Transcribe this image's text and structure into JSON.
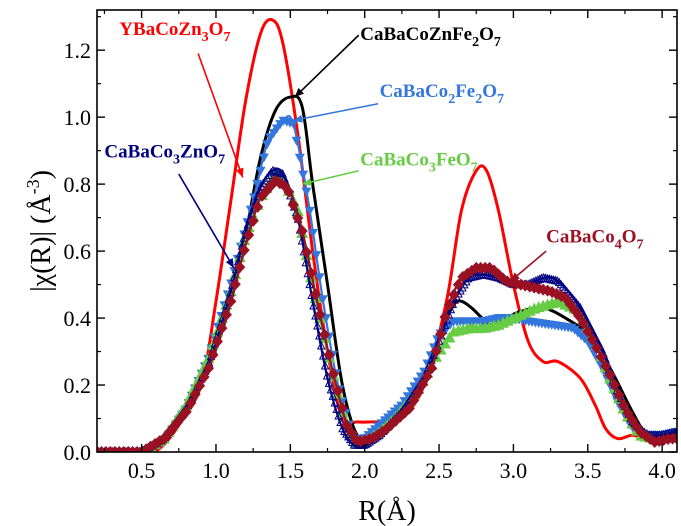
{
  "chart_data": {
    "type": "line",
    "xlabel": "R(Å)",
    "ylabel_parts": {
      "pre": "|χ(R)| (Å",
      "sup": "-3",
      "post": ")"
    },
    "xlim": [
      0.2,
      4.1
    ],
    "ylim": [
      0.0,
      1.32
    ],
    "xticks": [
      0.5,
      1.0,
      1.5,
      2.0,
      2.5,
      3.0,
      3.5,
      4.0
    ],
    "yticks": [
      0.0,
      0.2,
      0.4,
      0.6,
      0.8,
      1.0,
      1.2
    ],
    "xtick_labels": [
      "0.5",
      "1.0",
      "1.5",
      "2.0",
      "2.5",
      "3.0",
      "3.5",
      "4.0"
    ],
    "ytick_labels": [
      "0.0",
      "0.2",
      "0.4",
      "0.6",
      "0.8",
      "1.0",
      "1.2"
    ],
    "grid": false,
    "series": [
      {
        "key": "YBaCoZn3O7",
        "label": {
          "base": "YBaCoZn",
          "sub1": "3",
          "mid": "O",
          "sub2": "7"
        },
        "color": "#ff0000",
        "marker": "none",
        "label_at": [
          0.35,
          1.245
        ],
        "arrow_to": [
          1.18,
          0.82
        ],
        "points": [
          [
            0.2,
            0.0
          ],
          [
            0.5,
            0.0
          ],
          [
            0.62,
            0.01
          ],
          [
            0.75,
            0.08
          ],
          [
            0.9,
            0.2
          ],
          [
            1.0,
            0.45
          ],
          [
            1.1,
            0.75
          ],
          [
            1.2,
            1.05
          ],
          [
            1.3,
            1.25
          ],
          [
            1.38,
            1.29
          ],
          [
            1.45,
            1.22
          ],
          [
            1.55,
            0.95
          ],
          [
            1.65,
            0.6
          ],
          [
            1.75,
            0.3
          ],
          [
            1.85,
            0.1
          ],
          [
            1.95,
            0.09
          ],
          [
            2.05,
            0.09
          ],
          [
            2.15,
            0.09
          ],
          [
            2.25,
            0.1
          ],
          [
            2.4,
            0.2
          ],
          [
            2.55,
            0.45
          ],
          [
            2.65,
            0.72
          ],
          [
            2.75,
            0.84
          ],
          [
            2.82,
            0.84
          ],
          [
            2.9,
            0.72
          ],
          [
            3.0,
            0.5
          ],
          [
            3.1,
            0.33
          ],
          [
            3.2,
            0.27
          ],
          [
            3.3,
            0.27
          ],
          [
            3.45,
            0.22
          ],
          [
            3.55,
            0.14
          ],
          [
            3.62,
            0.07
          ],
          [
            3.7,
            0.04
          ],
          [
            3.8,
            0.05
          ],
          [
            3.9,
            0.04
          ],
          [
            4.0,
            0.05
          ],
          [
            4.1,
            0.06
          ]
        ]
      },
      {
        "key": "CaBaCoZnFe2O7",
        "label": {
          "base": "CaBaCoZnFe",
          "sub1": "2",
          "mid": "O",
          "sub2": "7"
        },
        "color": "#000000",
        "marker": "none",
        "label_at": [
          1.97,
          1.23
        ],
        "arrow_to": [
          1.53,
          1.06
        ],
        "points": [
          [
            0.2,
            0.0
          ],
          [
            0.5,
            0.0
          ],
          [
            0.65,
            0.03
          ],
          [
            0.8,
            0.12
          ],
          [
            0.95,
            0.25
          ],
          [
            1.1,
            0.45
          ],
          [
            1.2,
            0.65
          ],
          [
            1.3,
            0.88
          ],
          [
            1.4,
            1.02
          ],
          [
            1.5,
            1.06
          ],
          [
            1.58,
            1.03
          ],
          [
            1.65,
            0.8
          ],
          [
            1.75,
            0.5
          ],
          [
            1.85,
            0.2
          ],
          [
            1.95,
            0.05
          ],
          [
            2.05,
            0.05
          ],
          [
            2.2,
            0.1
          ],
          [
            2.35,
            0.18
          ],
          [
            2.5,
            0.35
          ],
          [
            2.6,
            0.44
          ],
          [
            2.65,
            0.45
          ],
          [
            2.72,
            0.43
          ],
          [
            2.85,
            0.38
          ],
          [
            2.95,
            0.4
          ],
          [
            3.05,
            0.42
          ],
          [
            3.2,
            0.43
          ],
          [
            3.35,
            0.4
          ],
          [
            3.5,
            0.35
          ],
          [
            3.65,
            0.25
          ],
          [
            3.8,
            0.12
          ],
          [
            3.9,
            0.05
          ],
          [
            4.0,
            0.05
          ],
          [
            4.1,
            0.06
          ]
        ]
      },
      {
        "key": "CaBaCo2Fe2O7",
        "label": {
          "base": "CaBaCo",
          "sub1": "2",
          "mid": "Fe",
          "sub2": "2",
          "end": "O",
          "sub3": "7"
        },
        "color": "#3377dd",
        "marker": "triangle-down",
        "label_at": [
          2.1,
          1.06
        ],
        "arrow_to": [
          1.52,
          0.99
        ],
        "points": [
          [
            0.2,
            0.0
          ],
          [
            0.5,
            0.0
          ],
          [
            0.65,
            0.03
          ],
          [
            0.8,
            0.13
          ],
          [
            0.95,
            0.28
          ],
          [
            1.1,
            0.5
          ],
          [
            1.25,
            0.75
          ],
          [
            1.35,
            0.93
          ],
          [
            1.45,
            0.99
          ],
          [
            1.52,
            0.98
          ],
          [
            1.62,
            0.75
          ],
          [
            1.72,
            0.45
          ],
          [
            1.82,
            0.2
          ],
          [
            1.92,
            0.04
          ],
          [
            2.0,
            0.04
          ],
          [
            2.1,
            0.08
          ],
          [
            2.25,
            0.14
          ],
          [
            2.4,
            0.24
          ],
          [
            2.5,
            0.35
          ],
          [
            2.6,
            0.39
          ],
          [
            2.7,
            0.39
          ],
          [
            2.8,
            0.39
          ],
          [
            2.9,
            0.4
          ],
          [
            3.0,
            0.4
          ],
          [
            3.1,
            0.39
          ],
          [
            3.25,
            0.38
          ],
          [
            3.4,
            0.37
          ],
          [
            3.5,
            0.33
          ],
          [
            3.6,
            0.25
          ],
          [
            3.7,
            0.15
          ],
          [
            3.8,
            0.07
          ],
          [
            3.9,
            0.05
          ],
          [
            4.0,
            0.05
          ],
          [
            4.1,
            0.06
          ]
        ]
      },
      {
        "key": "CaBaCo3FeO7",
        "label": {
          "base": "CaBaCo",
          "sub1": "3",
          "mid": "FeO",
          "sub2": "7"
        },
        "color": "#66cc44",
        "marker": "triangle-up",
        "label_at": [
          1.97,
          0.855
        ],
        "arrow_to": [
          1.58,
          0.8
        ],
        "points": [
          [
            0.2,
            0.0
          ],
          [
            0.5,
            0.0
          ],
          [
            0.65,
            0.04
          ],
          [
            0.8,
            0.14
          ],
          [
            0.95,
            0.28
          ],
          [
            1.1,
            0.48
          ],
          [
            1.2,
            0.65
          ],
          [
            1.3,
            0.76
          ],
          [
            1.4,
            0.83
          ],
          [
            1.45,
            0.82
          ],
          [
            1.55,
            0.72
          ],
          [
            1.65,
            0.5
          ],
          [
            1.75,
            0.3
          ],
          [
            1.85,
            0.12
          ],
          [
            1.93,
            0.03
          ],
          [
            2.0,
            0.03
          ],
          [
            2.1,
            0.06
          ],
          [
            2.2,
            0.1
          ],
          [
            2.35,
            0.18
          ],
          [
            2.5,
            0.3
          ],
          [
            2.6,
            0.36
          ],
          [
            2.7,
            0.37
          ],
          [
            2.8,
            0.37
          ],
          [
            2.9,
            0.38
          ],
          [
            3.0,
            0.4
          ],
          [
            3.15,
            0.43
          ],
          [
            3.3,
            0.45
          ],
          [
            3.45,
            0.42
          ],
          [
            3.55,
            0.33
          ],
          [
            3.65,
            0.22
          ],
          [
            3.75,
            0.12
          ],
          [
            3.85,
            0.05
          ],
          [
            3.95,
            0.04
          ],
          [
            4.1,
            0.05
          ]
        ]
      },
      {
        "key": "CaBaCo3ZnO7",
        "label": {
          "base": "CaBaCo",
          "sub1": "3",
          "mid": "ZnO",
          "sub2": "7"
        },
        "color": "#000080",
        "marker": "triangle-up-open",
        "label_at": [
          0.25,
          0.88
        ],
        "arrow_to": [
          1.12,
          0.55
        ],
        "points": [
          [
            0.2,
            0.0
          ],
          [
            0.5,
            0.0
          ],
          [
            0.65,
            0.04
          ],
          [
            0.8,
            0.13
          ],
          [
            0.95,
            0.26
          ],
          [
            1.1,
            0.48
          ],
          [
            1.2,
            0.66
          ],
          [
            1.3,
            0.79
          ],
          [
            1.38,
            0.84
          ],
          [
            1.45,
            0.83
          ],
          [
            1.55,
            0.7
          ],
          [
            1.65,
            0.45
          ],
          [
            1.75,
            0.22
          ],
          [
            1.85,
            0.07
          ],
          [
            1.93,
            0.02
          ],
          [
            2.0,
            0.02
          ],
          [
            2.1,
            0.05
          ],
          [
            2.25,
            0.12
          ],
          [
            2.4,
            0.22
          ],
          [
            2.5,
            0.33
          ],
          [
            2.6,
            0.45
          ],
          [
            2.7,
            0.52
          ],
          [
            2.8,
            0.53
          ],
          [
            2.9,
            0.52
          ],
          [
            3.0,
            0.5
          ],
          [
            3.1,
            0.5
          ],
          [
            3.2,
            0.52
          ],
          [
            3.3,
            0.51
          ],
          [
            3.45,
            0.43
          ],
          [
            3.6,
            0.3
          ],
          [
            3.7,
            0.18
          ],
          [
            3.8,
            0.09
          ],
          [
            3.9,
            0.05
          ],
          [
            4.0,
            0.05
          ],
          [
            4.1,
            0.06
          ]
        ]
      },
      {
        "key": "CaBaCo4O7",
        "label": {
          "base": "CaBaCo",
          "sub1": "4",
          "mid": "O",
          "sub2": "7"
        },
        "color": "#991122",
        "marker": "diamond",
        "label_at": [
          3.22,
          0.625
        ],
        "arrow_to": [
          2.98,
          0.51
        ],
        "points": [
          [
            0.2,
            0.0
          ],
          [
            0.5,
            0.0
          ],
          [
            0.65,
            0.04
          ],
          [
            0.8,
            0.12
          ],
          [
            0.95,
            0.25
          ],
          [
            1.1,
            0.45
          ],
          [
            1.2,
            0.62
          ],
          [
            1.3,
            0.76
          ],
          [
            1.4,
            0.81
          ],
          [
            1.48,
            0.79
          ],
          [
            1.58,
            0.66
          ],
          [
            1.68,
            0.45
          ],
          [
            1.78,
            0.25
          ],
          [
            1.88,
            0.08
          ],
          [
            1.95,
            0.03
          ],
          [
            2.05,
            0.04
          ],
          [
            2.15,
            0.07
          ],
          [
            2.3,
            0.13
          ],
          [
            2.45,
            0.25
          ],
          [
            2.55,
            0.42
          ],
          [
            2.65,
            0.52
          ],
          [
            2.75,
            0.55
          ],
          [
            2.85,
            0.55
          ],
          [
            2.95,
            0.51
          ],
          [
            3.05,
            0.5
          ],
          [
            3.15,
            0.49
          ],
          [
            3.25,
            0.48
          ],
          [
            3.35,
            0.46
          ],
          [
            3.45,
            0.4
          ],
          [
            3.55,
            0.32
          ],
          [
            3.65,
            0.23
          ],
          [
            3.75,
            0.13
          ],
          [
            3.85,
            0.06
          ],
          [
            3.95,
            0.03
          ],
          [
            4.05,
            0.04
          ],
          [
            4.1,
            0.04
          ]
        ]
      }
    ]
  }
}
